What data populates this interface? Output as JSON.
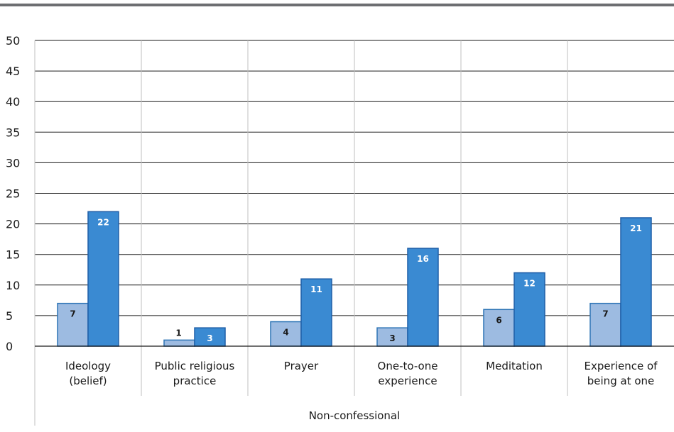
{
  "chart_data": {
    "type": "bar",
    "categories": [
      [
        "Ideology",
        "(belief)"
      ],
      [
        "Public religious",
        "practice"
      ],
      [
        "Prayer"
      ],
      [
        "One-to-one",
        "experience"
      ],
      [
        "Meditation"
      ],
      [
        "Experience of",
        "being at one"
      ]
    ],
    "group_label": "Non-confessional",
    "series": [
      {
        "values": [
          7,
          1,
          4,
          3,
          6,
          7
        ],
        "color": "#9dbbe1",
        "stroke": "#2e75b6",
        "label_color": "#1a1a1a"
      },
      {
        "values": [
          22,
          3,
          11,
          16,
          12,
          21
        ],
        "color": "#3a8ad2",
        "stroke": "#1f5fa8",
        "label_color": "#ffffff"
      }
    ],
    "ylim": [
      0,
      50
    ],
    "yticks": [
      0,
      5,
      10,
      15,
      20,
      25,
      30,
      35,
      40,
      45,
      50
    ],
    "grid": true,
    "colors": {
      "grid": "#bfbfbf",
      "axis": "#1a1a1a",
      "topbar": "#6d6e71"
    }
  }
}
